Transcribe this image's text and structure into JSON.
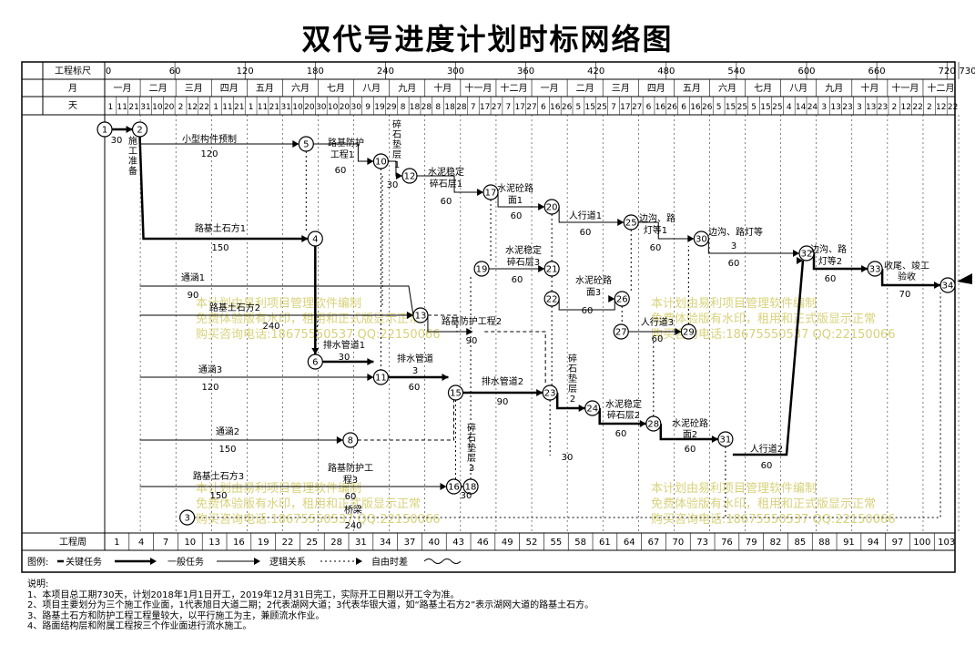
{
  "title": "双代号进度计划时标网络图",
  "scale": {
    "label": "工程标尺",
    "ticks": [
      "0",
      "60",
      "120",
      "180",
      "240",
      "300",
      "360",
      "420",
      "480",
      "540",
      "600",
      "660",
      "720",
      "730"
    ]
  },
  "months": {
    "label": "月",
    "items": [
      "一月",
      "二月",
      "三月",
      "四月",
      "五月",
      "六月",
      "七月",
      "八月",
      "九月",
      "十月",
      "十一月",
      "十二月",
      "一月",
      "二月",
      "三月",
      "四月",
      "五月",
      "六月",
      "七月",
      "八月",
      "九月",
      "十月",
      "十一月",
      "十二月"
    ]
  },
  "days": {
    "label": "天",
    "items": [
      "1",
      "11",
      "21",
      "31",
      "10",
      "20",
      "2",
      "12",
      "22",
      "1",
      "11",
      "21",
      "1",
      "11",
      "21",
      "31",
      "10",
      "20",
      "30",
      "10",
      "20",
      "30",
      "9",
      "19",
      "29",
      "8",
      "18",
      "28",
      "8",
      "18",
      "28",
      "7",
      "17",
      "27",
      "7",
      "17",
      "27",
      "6",
      "16",
      "26",
      "5",
      "15",
      "25",
      "7",
      "17",
      "27",
      "6",
      "16",
      "26",
      "6",
      "16",
      "26",
      "5",
      "15",
      "25",
      "5",
      "15",
      "25",
      "4",
      "14",
      "24",
      "3",
      "13",
      "23",
      "3",
      "13",
      "23",
      "2",
      "12",
      "22",
      "2",
      "12",
      "22"
    ]
  },
  "weeks": {
    "label": "工程周",
    "items": [
      "1",
      "4",
      "7",
      "10",
      "13",
      "16",
      "19",
      "22",
      "25",
      "28",
      "31",
      "34",
      "37",
      "40",
      "43",
      "46",
      "49",
      "52",
      "55",
      "58",
      "61",
      "64",
      "67",
      "70",
      "73",
      "76",
      "79",
      "82",
      "85",
      "88",
      "91",
      "94",
      "97",
      "100",
      "103"
    ]
  },
  "nodes": [
    {
      "id": "1",
      "x": 0
    },
    {
      "id": "2",
      "x": 30
    },
    {
      "id": "3",
      "x": 90
    },
    {
      "id": "4",
      "x": 180
    },
    {
      "id": "5",
      "x": 180
    },
    {
      "id": "6",
      "x": 180
    },
    {
      "id": "8",
      "x": 210
    },
    {
      "id": "10",
      "x": 240
    },
    {
      "id": "11",
      "x": 240
    },
    {
      "id": "12",
      "x": 270
    },
    {
      "id": "13",
      "x": 270
    },
    {
      "id": "15",
      "x": 300
    },
    {
      "id": "16",
      "x": 300
    },
    {
      "id": "17",
      "x": 330
    },
    {
      "id": "18",
      "x": 330
    },
    {
      "id": "19",
      "x": 330
    },
    {
      "id": "20",
      "x": 390
    },
    {
      "id": "21",
      "x": 390
    },
    {
      "id": "22",
      "x": 390
    },
    {
      "id": "23",
      "x": 390
    },
    {
      "id": "24",
      "x": 420
    },
    {
      "id": "25",
      "x": 450
    },
    {
      "id": "26",
      "x": 450
    },
    {
      "id": "27",
      "x": 450
    },
    {
      "id": "28",
      "x": 480
    },
    {
      "id": "29",
      "x": 510
    },
    {
      "id": "30",
      "x": 510
    },
    {
      "id": "31",
      "x": 540
    },
    {
      "id": "32",
      "x": 600
    },
    {
      "id": "33",
      "x": 660
    },
    {
      "id": "34",
      "x": 730
    }
  ],
  "tasks": [
    {
      "name": "施工准备",
      "days": "30"
    },
    {
      "name": "小型构件预制",
      "days": "120"
    },
    {
      "name": "路基防护工程1",
      "days": "60"
    },
    {
      "name": "碎石垫层1",
      "days": "30"
    },
    {
      "name": "水泥稳定碎石层1",
      "days": "60"
    },
    {
      "name": "水泥砼路面1",
      "days": "60"
    },
    {
      "name": "人行道1",
      "days": "60"
    },
    {
      "name": "边沟、路灯等1",
      "days": "60"
    },
    {
      "name": "边沟、路灯等3",
      "days": "60"
    },
    {
      "name": "边沟、路灯等2",
      "days": "60"
    },
    {
      "name": "收尾、竣工验收",
      "days": "70"
    },
    {
      "name": "路基土石方1",
      "days": "150"
    },
    {
      "name": "水泥稳定碎石层3",
      "days": "60"
    },
    {
      "name": "水泥砼路面3",
      "days": "60"
    },
    {
      "name": "通涵1",
      "days": "90"
    },
    {
      "name": "路基土石方2",
      "days": "240"
    },
    {
      "name": "路基防护工程2",
      "days": "90"
    },
    {
      "name": "人行道3",
      "days": "60"
    },
    {
      "name": "排水管道1",
      "days": "30"
    },
    {
      "name": "排水管道3",
      "days": "60"
    },
    {
      "name": "通涵3",
      "days": "120"
    },
    {
      "name": "排水管道2",
      "days": "90"
    },
    {
      "name": "碎石垫层2",
      "days": "30"
    },
    {
      "name": "水泥稳定碎石层2",
      "days": "60"
    },
    {
      "name": "水泥砼路面2",
      "days": "60"
    },
    {
      "name": "通涵2",
      "days": "150"
    },
    {
      "name": "碎石垫层3",
      "days": "30"
    },
    {
      "name": "人行道2",
      "days": "60"
    },
    {
      "name": "路基土石方3",
      "days": "150"
    },
    {
      "name": "路基防护工程3",
      "days": "60"
    },
    {
      "name": "桥梁",
      "days": "240"
    }
  ],
  "legend": {
    "label": "图例:",
    "critical": "关键任务",
    "normal": "一般任务",
    "logic": "逻辑关系",
    "float": "自由时差"
  },
  "watermark": [
    "本计划由易利项目管理软件编制",
    "免费体验版有水印，租用和正式版显示正常",
    "购买咨询电话:18675550537 QQ:22150066"
  ],
  "notes": {
    "heading": "说明:",
    "lines": [
      "1、本项目总工期730天，计划2018年1月1日开工，2019年12月31日完工，实际开工日期以开工令为准。",
      "2、项目主要划分为三个施工作业面，1代表旭日大道二期；2代表湖网大道；3代表华银大道，如“路基土石方2”表示湖网大道的路基土石方。",
      "3、路基土石方和防护工程工程量较大，以平行施工为主，兼顾流水作业。",
      "4、路面结构层和附属工程按三个作业面进行流水施工。"
    ]
  },
  "colors": {
    "line": "#000000",
    "watermark": "#d9d27a"
  }
}
